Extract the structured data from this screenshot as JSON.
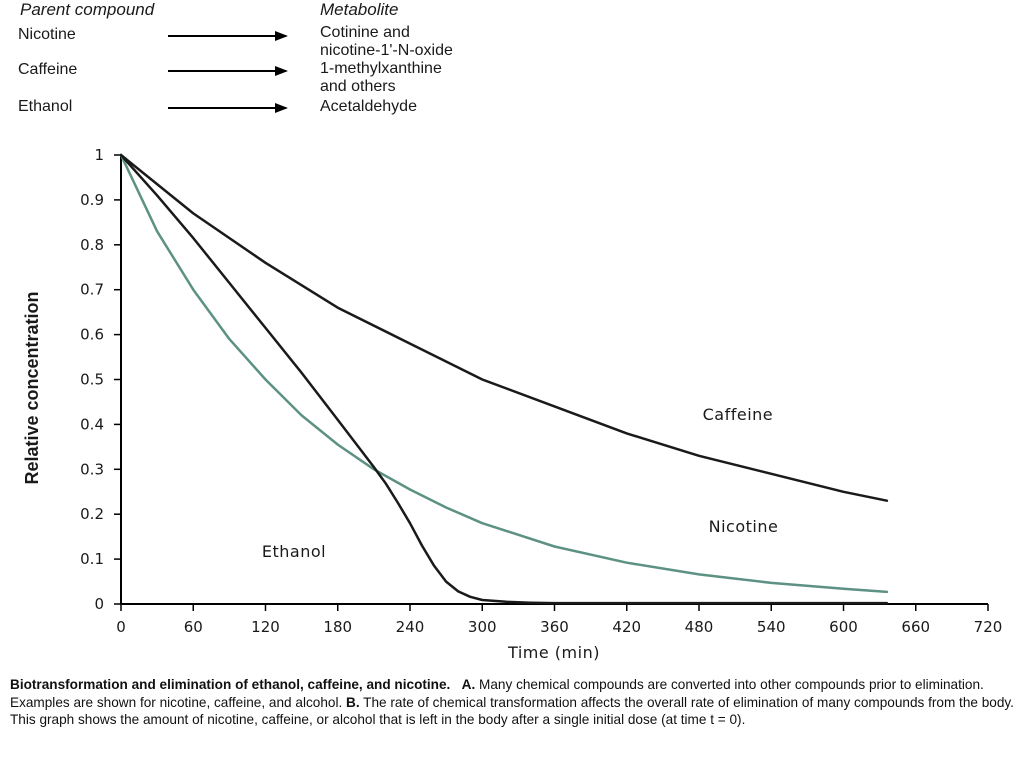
{
  "panel_a": {
    "header_parent": "Parent compound",
    "header_metabolite": "Metabolite",
    "rows": [
      {
        "parent": "Nicotine",
        "metabolite": [
          "Cotinine and",
          "nicotine-1'-N-oxide"
        ]
      },
      {
        "parent": "Caffeine",
        "metabolite": [
          "1-methylxanthine",
          "and others"
        ]
      },
      {
        "parent": "Ethanol",
        "metabolite": [
          "Acetaldehyde"
        ]
      }
    ]
  },
  "chart_data": {
    "type": "line",
    "xlabel": "Time (min)",
    "ylabel": "Relative concentration",
    "xlim": [
      0,
      720
    ],
    "ylim": [
      0,
      1
    ],
    "xticks": [
      0,
      60,
      120,
      180,
      240,
      300,
      360,
      420,
      480,
      540,
      600,
      660,
      720
    ],
    "yticks": [
      0,
      0.1,
      0.2,
      0.3,
      0.4,
      0.5,
      0.6,
      0.7,
      0.8,
      0.9,
      1
    ],
    "ytick_labels": [
      "0",
      "0.1",
      "0.2",
      "0.3",
      "0.4",
      "0.5",
      "0.6",
      "0.7",
      "0.8",
      "0.9",
      "1"
    ],
    "grid": false,
    "series": [
      {
        "name": "Caffeine",
        "color": "#1a1a1a",
        "x": [
          0,
          60,
          120,
          180,
          240,
          300,
          360,
          420,
          480,
          540,
          600,
          636
        ],
        "y": [
          1,
          0.87,
          0.76,
          0.66,
          0.58,
          0.5,
          0.44,
          0.38,
          0.33,
          0.29,
          0.25,
          0.23
        ]
      },
      {
        "name": "Nicotine",
        "color": "#5c9184",
        "x": [
          0,
          30,
          60,
          90,
          120,
          150,
          180,
          210,
          240,
          270,
          300,
          360,
          420,
          480,
          540,
          600,
          636
        ],
        "y": [
          1,
          0.83,
          0.7,
          0.59,
          0.5,
          0.42,
          0.355,
          0.3,
          0.255,
          0.215,
          0.18,
          0.128,
          0.092,
          0.066,
          0.047,
          0.034,
          0.027
        ]
      },
      {
        "name": "Ethanol",
        "color": "#1a1a1a",
        "x": [
          0,
          30,
          60,
          90,
          120,
          150,
          180,
          210,
          220,
          230,
          240,
          250,
          260,
          270,
          280,
          290,
          300,
          320,
          340,
          360,
          420,
          480,
          540,
          600,
          636
        ],
        "y": [
          1,
          0.91,
          0.815,
          0.715,
          0.615,
          0.515,
          0.41,
          0.305,
          0.268,
          0.225,
          0.18,
          0.13,
          0.085,
          0.05,
          0.028,
          0.016,
          0.009,
          0.005,
          0.003,
          0.002,
          0.002,
          0.002,
          0.002,
          0.002,
          0.002
        ]
      }
    ],
    "annotations": [
      {
        "text": "Caffeine",
        "x": 483,
        "y": 0.41
      },
      {
        "text": "Nicotine",
        "x": 488,
        "y": 0.16
      },
      {
        "text": "Ethanol",
        "x": 117,
        "y": 0.105
      }
    ]
  },
  "caption": {
    "title": "Biotransformation and elimination of ethanol, caffeine, and nicotine.",
    "label_a": "A.",
    "text_a": "Many chemical compounds are converted into other compounds prior to elimination. Examples are shown for nicotine, caffeine, and alcohol.",
    "label_b": "B.",
    "text_b": "The rate of chemical transformation affects the overall rate of elimination of many compounds from the body. This graph shows the amount of nicotine, caffeine, or alcohol that is left in the body after a single initial dose (at time t = 0)."
  }
}
